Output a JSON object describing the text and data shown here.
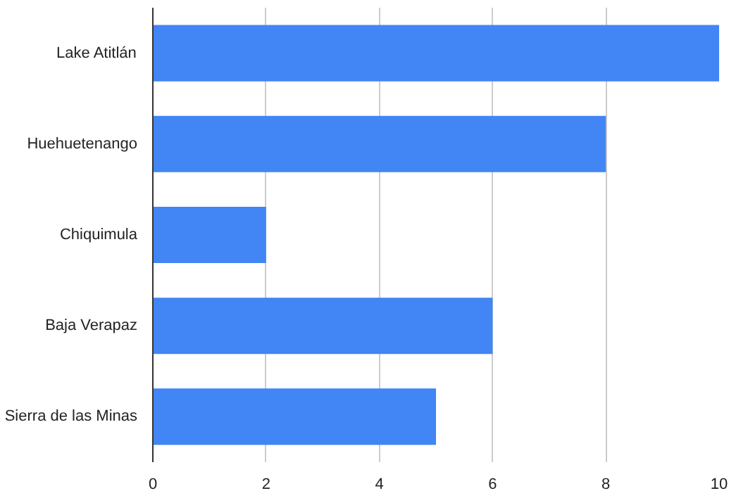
{
  "chart_data": {
    "type": "bar",
    "orientation": "horizontal",
    "categories": [
      "Lake Atitlán",
      "Huehuetenango",
      "Chiquimula",
      "Baja Verapaz",
      "Sierra de las Minas"
    ],
    "values": [
      10,
      8,
      2,
      6,
      5
    ],
    "color": "#4285f4",
    "xlim": [
      0,
      10
    ],
    "xticks": [
      0,
      2,
      4,
      6,
      8,
      10
    ],
    "grid": "x"
  }
}
